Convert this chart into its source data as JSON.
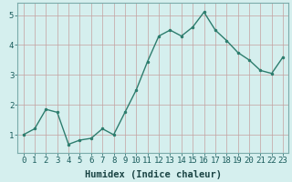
{
  "x": [
    0,
    1,
    2,
    3,
    4,
    5,
    6,
    7,
    8,
    9,
    10,
    11,
    12,
    13,
    14,
    15,
    16,
    17,
    18,
    19,
    20,
    21,
    22,
    23
  ],
  "y": [
    1.0,
    1.2,
    1.85,
    1.75,
    0.68,
    0.82,
    0.88,
    1.2,
    1.0,
    1.75,
    2.5,
    3.45,
    4.3,
    4.5,
    4.3,
    4.6,
    5.1,
    4.5,
    4.15,
    3.75,
    3.5,
    3.15,
    3.05,
    3.6
  ],
  "line_color": "#2d7d6e",
  "marker": ".",
  "marker_color": "#2d7d6e",
  "marker_size": 3,
  "bg_color": "#d5efee",
  "grid_color": "#c4a0a0",
  "xlabel": "Humidex (Indice chaleur)",
  "xlabel_fontsize": 7.5,
  "xlim": [
    -0.5,
    23.5
  ],
  "ylim": [
    0.4,
    5.4
  ],
  "yticks": [
    1,
    2,
    3,
    4,
    5
  ],
  "xticks": [
    0,
    1,
    2,
    3,
    4,
    5,
    6,
    7,
    8,
    9,
    10,
    11,
    12,
    13,
    14,
    15,
    16,
    17,
    18,
    19,
    20,
    21,
    22,
    23
  ],
  "tick_fontsize": 6.5,
  "line_width": 1.0
}
